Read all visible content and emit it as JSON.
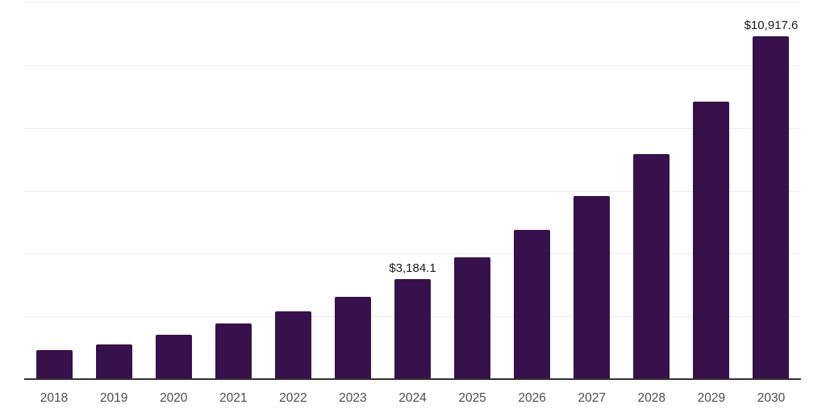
{
  "chart_data": {
    "type": "bar",
    "title": "",
    "xlabel": "",
    "ylabel": "",
    "categories": [
      "2018",
      "2019",
      "2020",
      "2021",
      "2022",
      "2023",
      "2024",
      "2025",
      "2026",
      "2027",
      "2028",
      "2029",
      "2030"
    ],
    "values": [
      920,
      1110,
      1410,
      1765,
      2160,
      2610,
      3184.1,
      3880,
      4750,
      5830,
      7180,
      8850,
      10917.6
    ],
    "data_labels": [
      {
        "index": 6,
        "text": "$3,184.1"
      },
      {
        "index": 12,
        "text": "$10,917.6"
      }
    ],
    "ylim": [
      0,
      12000
    ],
    "gridline_step": 2000,
    "grid": "horizontal",
    "legend": "none",
    "y_axis_tick_labels": "none",
    "colors": {
      "bar": "#36114B",
      "gridline": "#ececec",
      "axis_line": "#333333",
      "tick_label": "#4d4d4d",
      "data_label": "#1a1a1a",
      "background": "#ffffff"
    }
  }
}
